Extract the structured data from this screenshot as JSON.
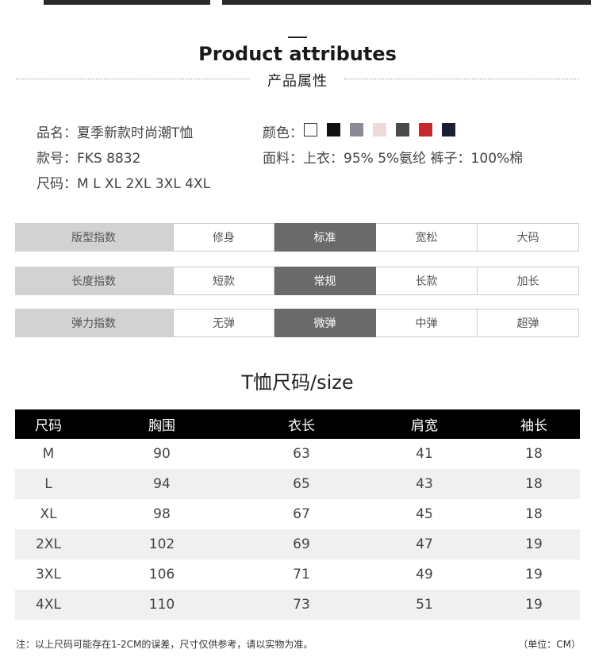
{
  "header": {
    "title_en": "Product attributes",
    "title_cn": "产品属性"
  },
  "info": {
    "name": "品名：夏季新款时尚潮T恤",
    "model": "款号：FKS 8832",
    "sizes": "尺码：M  L  XL  2XL  3XL  4XL",
    "color_label": "颜色：",
    "fabric": "面料：上衣：95% 5%氨纶  裤子：100%棉"
  },
  "colors": [
    "#ffffff",
    "#111111",
    "#8c8b93",
    "#f0d9db",
    "#4a4a4a",
    "#c8282b",
    "#1c1f33"
  ],
  "indexes": [
    {
      "label": "版型指数",
      "options": [
        "修身",
        "标准",
        "宽松",
        "大码"
      ],
      "selected": 1
    },
    {
      "label": "长度指数",
      "options": [
        "短款",
        "常规",
        "长款",
        "加长"
      ],
      "selected": 1
    },
    {
      "label": "弹力指数",
      "options": [
        "无弹",
        "微弹",
        "中弹",
        "超弹"
      ],
      "selected": 1
    }
  ],
  "size_chart": {
    "title": "T恤尺码/size",
    "headers": [
      "尺码",
      "胸围",
      "衣长",
      "肩宽",
      "袖长"
    ],
    "rows": [
      [
        "M",
        "90",
        "63",
        "41",
        "18"
      ],
      [
        "L",
        "94",
        "65",
        "43",
        "18"
      ],
      [
        "XL",
        "98",
        "67",
        "45",
        "18"
      ],
      [
        "2XL",
        "102",
        "69",
        "47",
        "19"
      ],
      [
        "3XL",
        "106",
        "71",
        "49",
        "19"
      ],
      [
        "4XL",
        "110",
        "73",
        "51",
        "19"
      ]
    ]
  },
  "footer": {
    "note": "注：以上尺码可能存在1-2CM的误差，尺寸仅供参考，请以实物为准。",
    "unit": "（单位：CM）"
  }
}
